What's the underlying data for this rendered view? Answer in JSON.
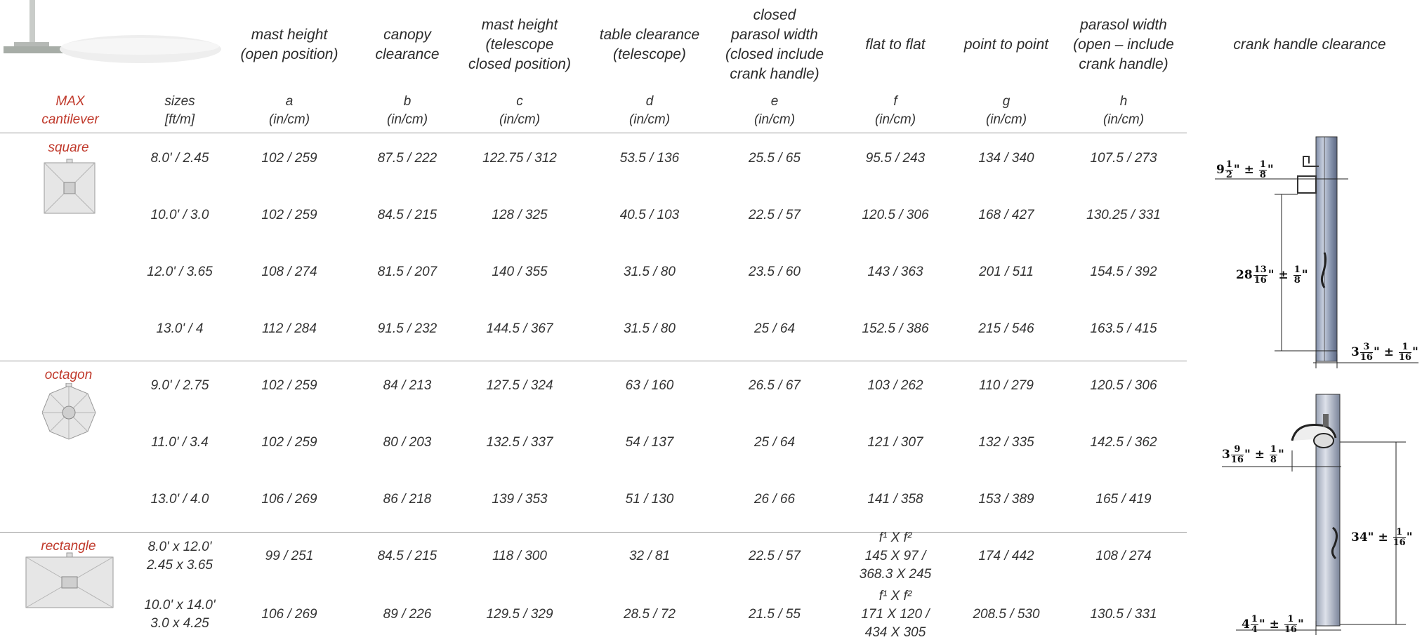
{
  "header": {
    "columns": [
      {
        "title": [
          "mast height",
          "(open position)"
        ],
        "sub": [
          "a",
          "(in/cm)"
        ]
      },
      {
        "title": [
          "canopy",
          "clearance"
        ],
        "sub": [
          "b",
          "(in/cm)"
        ]
      },
      {
        "title": [
          "mast height",
          "(telescope",
          "closed position)"
        ],
        "sub": [
          "c",
          "(in/cm)"
        ]
      },
      {
        "title": [
          "table clearance",
          "(telescope)"
        ],
        "sub": [
          "d",
          "(in/cm)"
        ]
      },
      {
        "title": [
          "closed",
          "parasol width",
          "(closed include",
          "crank handle)"
        ],
        "sub": [
          "e",
          "(in/cm)"
        ]
      },
      {
        "title": [
          "flat to flat"
        ],
        "sub": [
          "f",
          "(in/cm)"
        ]
      },
      {
        "title": [
          "point to point"
        ],
        "sub": [
          "g",
          "(in/cm)"
        ]
      },
      {
        "title": [
          "parasol width",
          "(open – include",
          "crank handle)"
        ],
        "sub": [
          "h",
          "(in/cm)"
        ]
      }
    ],
    "max_label": [
      "MAX",
      "cantilever"
    ],
    "sizes_label": [
      "sizes",
      "[ft/m]"
    ],
    "crank_title": "crank handle clearance"
  },
  "groups": [
    {
      "shape": "square",
      "rows": [
        {
          "size": [
            "8.0' / 2.45"
          ],
          "a": [
            "102 / 259"
          ],
          "b": [
            "87.5 / 222"
          ],
          "c": [
            "122.75 / 312"
          ],
          "d": [
            "53.5 / 136"
          ],
          "e": [
            "25.5 / 65"
          ],
          "f": [
            "95.5 / 243"
          ],
          "g": [
            "134 / 340"
          ],
          "h": [
            "107.5 / 273"
          ]
        },
        {
          "size": [
            "10.0' / 3.0"
          ],
          "a": [
            "102 / 259"
          ],
          "b": [
            "84.5 / 215"
          ],
          "c": [
            "128 / 325"
          ],
          "d": [
            "40.5 / 103"
          ],
          "e": [
            "22.5 / 57"
          ],
          "f": [
            "120.5 / 306"
          ],
          "g": [
            "168 / 427"
          ],
          "h": [
            "130.25 / 331"
          ]
        },
        {
          "size": [
            "12.0' / 3.65"
          ],
          "a": [
            "108 / 274"
          ],
          "b": [
            "81.5 / 207"
          ],
          "c": [
            "140  / 355"
          ],
          "d": [
            "31.5 / 80"
          ],
          "e": [
            "23.5 / 60"
          ],
          "f": [
            "143 / 363"
          ],
          "g": [
            "201 / 511"
          ],
          "h": [
            "154.5 / 392"
          ]
        },
        {
          "size": [
            "13.0' / 4"
          ],
          "a": [
            "112 / 284"
          ],
          "b": [
            "91.5 / 232"
          ],
          "c": [
            "144.5 / 367"
          ],
          "d": [
            "31.5 / 80"
          ],
          "e": [
            "25 / 64"
          ],
          "f": [
            "152.5 / 386"
          ],
          "g": [
            "215 / 546"
          ],
          "h": [
            "163.5 / 415"
          ]
        }
      ]
    },
    {
      "shape": "octagon",
      "rows": [
        {
          "size": [
            "9.0' / 2.75"
          ],
          "a": [
            "102  / 259"
          ],
          "b": [
            "84 / 213"
          ],
          "c": [
            "127.5 / 324"
          ],
          "d": [
            "63 / 160"
          ],
          "e": [
            "26.5 / 67"
          ],
          "f": [
            "103 / 262"
          ],
          "g": [
            "110 / 279"
          ],
          "h": [
            "120.5 / 306"
          ]
        },
        {
          "size": [
            "11.0' / 3.4"
          ],
          "a": [
            "102  / 259"
          ],
          "b": [
            "80 / 203"
          ],
          "c": [
            "132.5 / 337"
          ],
          "d": [
            "54 / 137"
          ],
          "e": [
            "25 / 64"
          ],
          "f": [
            "121 / 307"
          ],
          "g": [
            "132 / 335"
          ],
          "h": [
            "142.5 / 362"
          ]
        },
        {
          "size": [
            "13.0' / 4.0"
          ],
          "a": [
            "106 / 269"
          ],
          "b": [
            "86 / 218"
          ],
          "c": [
            "139 / 353"
          ],
          "d": [
            "51 / 130"
          ],
          "e": [
            "26 / 66"
          ],
          "f": [
            "141 / 358"
          ],
          "g": [
            "153 / 389"
          ],
          "h": [
            "165 / 419"
          ]
        }
      ]
    },
    {
      "shape": "rectangle",
      "rows": [
        {
          "size": [
            "8.0' x 12.0'",
            "2.45 x 3.65"
          ],
          "a": [
            "99 / 251"
          ],
          "b": [
            "84.5 / 215"
          ],
          "c": [
            "118 / 300"
          ],
          "d": [
            "32 / 81"
          ],
          "e": [
            "22.5 / 57"
          ],
          "f": [
            "f¹ X f²",
            "145 X 97 /",
            "368.3 X 245"
          ],
          "g": [
            "174 / 442"
          ],
          "h": [
            "108 / 274"
          ]
        },
        {
          "size": [
            "10.0' x 14.0'",
            "3.0 x 4.25"
          ],
          "a": [
            "106 / 269"
          ],
          "b": [
            "89 / 226"
          ],
          "c": [
            "129.5 / 329"
          ],
          "d": [
            "28.5 / 72"
          ],
          "e": [
            "21.5 / 55"
          ],
          "f": [
            "f¹ X f²",
            "171 X 120 /",
            "434 X 305"
          ],
          "g": [
            "208.5 / 530"
          ],
          "h": [
            "130.5 / 331"
          ]
        }
      ]
    }
  ],
  "crank_dims": {
    "top": [
      {
        "whole": "9",
        "num": "1",
        "den": "2",
        "tol_num": "1",
        "tol_den": "8"
      },
      {
        "whole": "28",
        "num": "13",
        "den": "16",
        "tol_num": "1",
        "tol_den": "8"
      },
      {
        "whole": "3",
        "num": "3",
        "den": "16",
        "tol_num": "1",
        "tol_den": "16"
      }
    ],
    "bottom": [
      {
        "whole": "3",
        "num": "9",
        "den": "16",
        "tol_num": "1",
        "tol_den": "8"
      },
      {
        "whole": "34",
        "num": "",
        "den": "",
        "tol_num": "1",
        "tol_den": "16"
      },
      {
        "whole": "4",
        "num": "1",
        "den": "4",
        "tol_num": "1",
        "tol_den": "16"
      }
    ]
  }
}
